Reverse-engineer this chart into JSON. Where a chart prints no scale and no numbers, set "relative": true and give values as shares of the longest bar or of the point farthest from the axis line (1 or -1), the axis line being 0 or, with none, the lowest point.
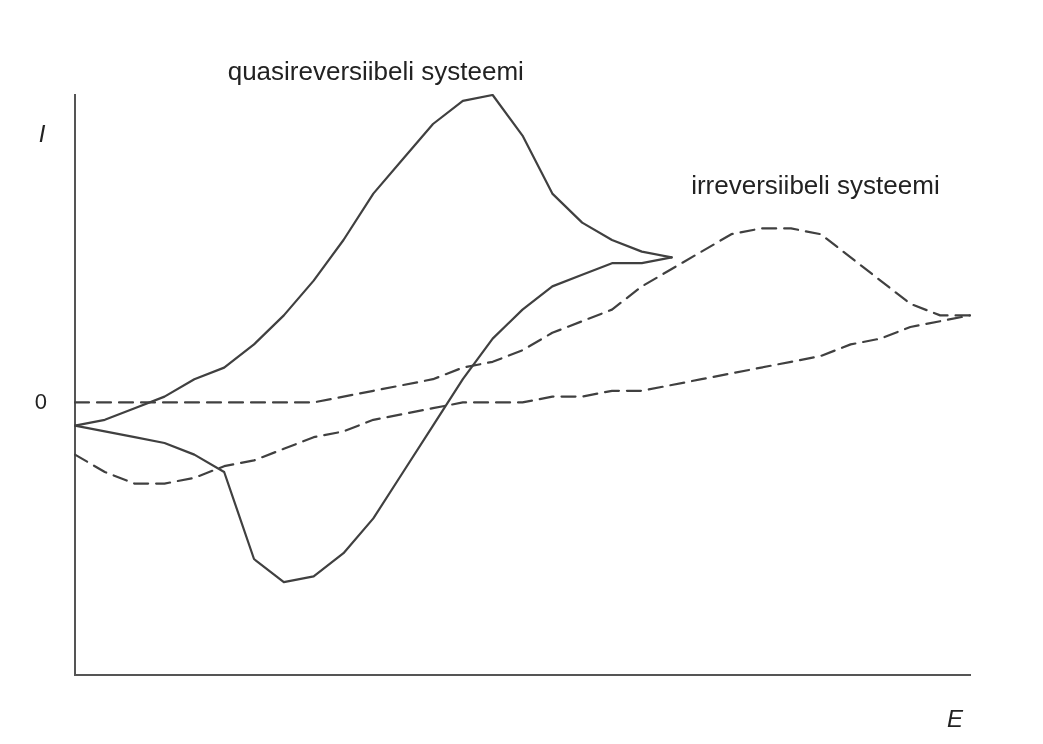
{
  "chart_data": {
    "type": "line",
    "relative": true,
    "xlabel": "E",
    "ylabel": "I",
    "legend": false,
    "marker": "none",
    "annotations": [
      "0"
    ],
    "categories": [
      null,
      null,
      null,
      null,
      null,
      null,
      null,
      null,
      null,
      null,
      null,
      null,
      null,
      null,
      null,
      null,
      null,
      null,
      null,
      null,
      null,
      null,
      null,
      null,
      null,
      null,
      null,
      null,
      null,
      null,
      null
    ],
    "series": [
      {
        "name": "quasireversiibeli systeemi",
        "color": "#404040",
        "line_style": "solid",
        "values": [
          0.43,
          0.44,
          0.46,
          0.48,
          0.51,
          0.53,
          0.57,
          0.62,
          0.68,
          0.75,
          0.83,
          0.89,
          0.95,
          0.99,
          1,
          0.93,
          0.83,
          0.78,
          0.75,
          0.73,
          0.72,
          null,
          null,
          null,
          null,
          null,
          null,
          null,
          null,
          null,
          null
        ]
      },
      {
        "color": "#404040",
        "line_style": "solid",
        "values": [
          0.43,
          0.42,
          0.41,
          0.4,
          0.38,
          0.35,
          0.2,
          0.16,
          0.17,
          0.21,
          0.27,
          0.35,
          0.43,
          0.51,
          0.58,
          0.63,
          0.67,
          0.69,
          0.71,
          0.71,
          0.72,
          null,
          null,
          null,
          null,
          null,
          null,
          null,
          null,
          null,
          null
        ]
      },
      {
        "name": "irreversiibeli systeemi",
        "color": "#404040",
        "line_style": "dashed",
        "values": [
          0.47,
          0.47,
          0.47,
          0.47,
          0.47,
          0.47,
          0.47,
          0.47,
          0.47,
          0.48,
          0.49,
          0.5,
          0.51,
          0.53,
          0.54,
          0.56,
          0.59,
          0.61,
          0.63,
          0.67,
          0.7,
          0.73,
          0.76,
          0.77,
          0.77,
          0.76,
          0.72,
          0.68,
          0.64,
          0.62,
          0.62
        ]
      },
      {
        "color": "#404040",
        "line_style": "dashed",
        "values": [
          0.38,
          0.35,
          0.33,
          0.33,
          0.34,
          0.36,
          0.37,
          0.39,
          0.41,
          0.42,
          0.44,
          0.45,
          0.46,
          0.47,
          0.47,
          0.47,
          0.48,
          0.48,
          0.49,
          0.49,
          0.5,
          0.51,
          0.52,
          0.53,
          0.54,
          0.55,
          0.57,
          0.58,
          0.6,
          0.61,
          0.62
        ]
      }
    ]
  }
}
